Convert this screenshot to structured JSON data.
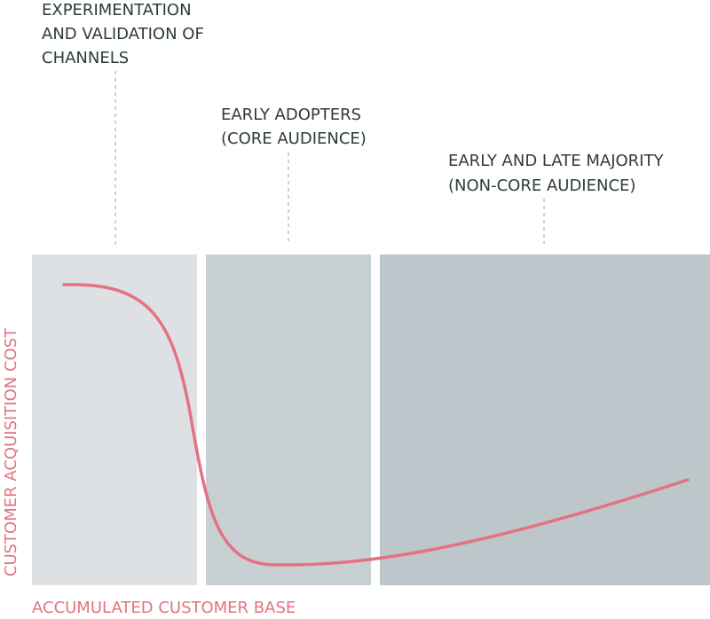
{
  "stages": [
    {
      "label": [
        "EXPERIMENTATION",
        "AND VALIDATION OF",
        "CHANNELS"
      ]
    },
    {
      "label": [
        "EARLY ADOPTERS",
        "(CORE AUDIENCE)"
      ]
    },
    {
      "label": [
        "EARLY AND LATE MAJORITY",
        "(NON-CORE AUDIENCE)"
      ]
    }
  ],
  "y_axis_label": "CUSTOMER ACQUISITION COST",
  "x_axis_label": "ACCUMULATED CUSTOMER BASE"
}
